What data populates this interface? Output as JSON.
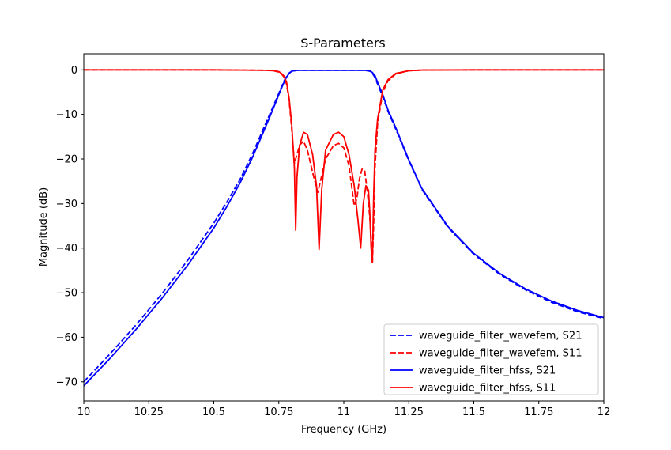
{
  "chart_data": {
    "type": "line",
    "title": "S-Parameters",
    "xlabel": "Frequency (GHz)",
    "ylabel": "Magnitude (dB)",
    "xlim": [
      10,
      12
    ],
    "ylim": [
      -74.3,
      3.6
    ],
    "x_ticks": [
      10,
      10.25,
      10.5,
      10.75,
      11,
      11.25,
      11.5,
      11.75,
      12
    ],
    "x_tick_labels": [
      "10",
      "10.25",
      "10.5",
      "10.75",
      "11",
      "11.25",
      "11.5",
      "11.75",
      "12"
    ],
    "y_ticks": [
      0,
      -10,
      -20,
      -30,
      -40,
      -50,
      -60,
      -70
    ],
    "y_tick_labels": [
      "0",
      "−10",
      "−20",
      "−30",
      "−40",
      "−50",
      "−60",
      "−70"
    ],
    "grid": false,
    "legend_position": "lower-right",
    "series": [
      {
        "name": "waveguide_filter_wavefem, S21",
        "color": "#0000ff",
        "dash": "dashed",
        "x": [
          10.0,
          10.1,
          10.2,
          10.3,
          10.4,
          10.5,
          10.55,
          10.6,
          10.65,
          10.7,
          10.73,
          10.75,
          10.77,
          10.78,
          10.79,
          10.8,
          10.82,
          10.85,
          10.9,
          10.95,
          11.0,
          11.05,
          11.08,
          11.1,
          11.11,
          11.12,
          11.13,
          11.15,
          11.17,
          11.2,
          11.25,
          11.3,
          11.4,
          11.5,
          11.6,
          11.7,
          11.8,
          11.9,
          12.0
        ],
        "y": [
          -70.0,
          -63.8,
          -57.3,
          -50.3,
          -42.7,
          -34.4,
          -29.7,
          -24.7,
          -18.7,
          -12.0,
          -8.0,
          -5.3,
          -2.5,
          -1.5,
          -0.7,
          -0.3,
          -0.1,
          -0.1,
          -0.1,
          -0.1,
          -0.1,
          -0.1,
          -0.1,
          -0.3,
          -0.8,
          -1.7,
          -3.2,
          -6.0,
          -9.3,
          -13.3,
          -20.4,
          -26.8,
          -35.3,
          -41.4,
          -45.9,
          -49.4,
          -52.2,
          -54.3,
          -55.8
        ]
      },
      {
        "name": "waveguide_filter_wavefem, S11",
        "color": "#ff0000",
        "dash": "dashed",
        "x": [
          10.0,
          10.5,
          10.7,
          10.73,
          10.75,
          10.76,
          10.77,
          10.78,
          10.79,
          10.8,
          10.81,
          10.82,
          10.83,
          10.845,
          10.86,
          10.88,
          10.9,
          10.91,
          10.93,
          10.96,
          10.98,
          11.0,
          11.02,
          11.04,
          11.05,
          11.06,
          11.07,
          11.08,
          11.09,
          11.1,
          11.105,
          11.11,
          11.115,
          11.12,
          11.13,
          11.15,
          11.17,
          11.2,
          11.25,
          11.3,
          11.5,
          12.0
        ],
        "y": [
          0,
          0,
          -0.1,
          -0.2,
          -0.5,
          -0.9,
          -1.6,
          -3.2,
          -7.0,
          -13.5,
          -21.0,
          -19.0,
          -16.9,
          -16.0,
          -18.0,
          -23.0,
          -27.5,
          -25.0,
          -20.0,
          -17.0,
          -16.5,
          -17.5,
          -21.5,
          -30.5,
          -29.0,
          -24.5,
          -22.3,
          -22.5,
          -27.0,
          -33.0,
          -38.0,
          -43.6,
          -34.0,
          -22.0,
          -12.0,
          -5.0,
          -2.5,
          -0.9,
          -0.2,
          -0.05,
          0,
          0
        ]
      },
      {
        "name": "waveguide_filter_hfss, S21",
        "color": "#0000ff",
        "dash": "solid",
        "x": [
          10.0,
          10.1,
          10.2,
          10.3,
          10.4,
          10.5,
          10.55,
          10.6,
          10.65,
          10.7,
          10.73,
          10.75,
          10.77,
          10.78,
          10.79,
          10.8,
          10.82,
          10.85,
          10.9,
          10.95,
          11.0,
          11.05,
          11.08,
          11.1,
          11.11,
          11.12,
          11.13,
          11.15,
          11.17,
          11.2,
          11.25,
          11.3,
          11.4,
          11.5,
          11.6,
          11.7,
          11.8,
          11.9,
          12.0
        ],
        "y": [
          -70.9,
          -64.8,
          -58.3,
          -51.3,
          -43.8,
          -35.5,
          -30.7,
          -25.5,
          -19.5,
          -12.7,
          -8.5,
          -5.6,
          -2.8,
          -1.6,
          -0.8,
          -0.3,
          -0.1,
          -0.1,
          -0.1,
          -0.1,
          -0.1,
          -0.1,
          -0.1,
          -0.2,
          -0.6,
          -1.3,
          -2.8,
          -5.6,
          -9.0,
          -13.0,
          -20.2,
          -26.6,
          -35.1,
          -41.2,
          -45.7,
          -49.2,
          -51.9,
          -54.0,
          -55.6
        ]
      },
      {
        "name": "waveguide_filter_hfss, S11",
        "color": "#ff0000",
        "dash": "solid",
        "x": [
          10.0,
          10.5,
          10.7,
          10.73,
          10.75,
          10.76,
          10.77,
          10.78,
          10.79,
          10.8,
          10.81,
          10.815,
          10.82,
          10.83,
          10.845,
          10.86,
          10.88,
          10.895,
          10.905,
          10.915,
          10.93,
          10.96,
          10.98,
          11.0,
          11.02,
          11.04,
          11.055,
          11.065,
          11.075,
          11.085,
          11.095,
          11.1,
          11.105,
          11.11,
          11.115,
          11.12,
          11.13,
          11.15,
          11.17,
          11.2,
          11.25,
          11.3,
          11.5,
          12.0
        ],
        "y": [
          0,
          0,
          -0.1,
          -0.2,
          -0.4,
          -0.8,
          -1.4,
          -2.8,
          -6.5,
          -12.5,
          -22.0,
          -36.0,
          -24.0,
          -17.0,
          -14.0,
          -14.5,
          -19.0,
          -26.0,
          -40.3,
          -27.0,
          -18.0,
          -14.5,
          -14.0,
          -15.0,
          -19.0,
          -26.0,
          -34.0,
          -40.0,
          -30.0,
          -26.0,
          -27.0,
          -32.0,
          -40.0,
          -43.0,
          -28.0,
          -18.0,
          -11.0,
          -4.5,
          -2.2,
          -0.8,
          -0.2,
          -0.05,
          0,
          0
        ]
      }
    ]
  }
}
